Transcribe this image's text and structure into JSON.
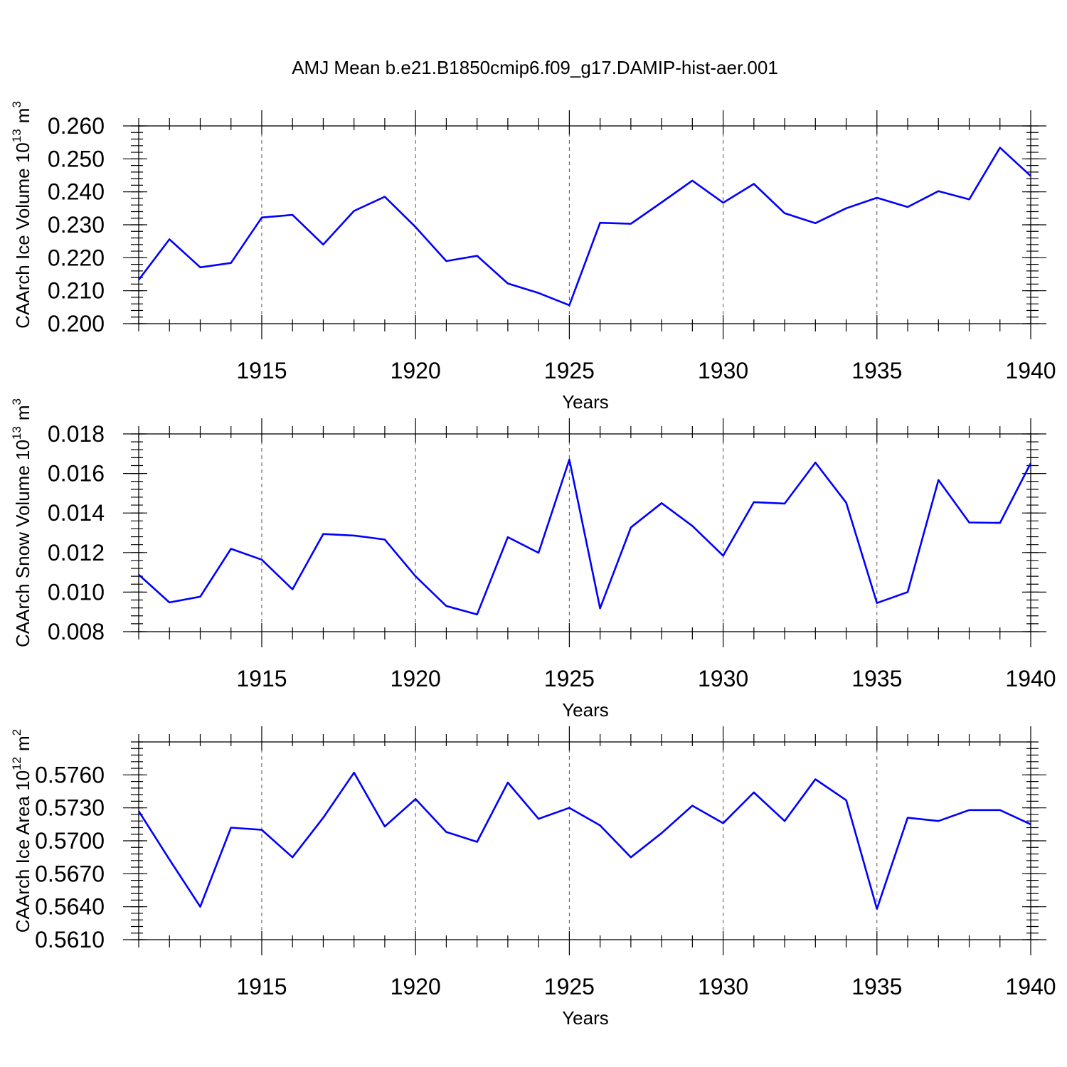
{
  "figure_title": "AMJ Mean b.e21.B1850cmip6.f09_g17.DAMIP-hist-aer.001",
  "chart_data": [
    {
      "type": "line",
      "title": "AMJ Mean b.e21.B1850cmip6.f09_g17.DAMIP-hist-aer.001",
      "ylabel_main": "CAArch Ice Volume 10",
      "ylabel_exp": "13",
      "ylabel_unit": "m",
      "ylabel_unit_exp": "3",
      "xlabel": "Years",
      "xlim": [
        1911,
        1940
      ],
      "ylim": [
        0.2,
        0.26
      ],
      "xticks": [
        1915,
        1920,
        1925,
        1930,
        1935,
        1940
      ],
      "xtick_labels": [
        "1915",
        "1920",
        "1925",
        "1930",
        "1935",
        "1940"
      ],
      "yticks": [
        0.2,
        0.21,
        0.22,
        0.23,
        0.24,
        0.25,
        0.26
      ],
      "ytick_labels": [
        "0.200",
        "0.210",
        "0.220",
        "0.230",
        "0.240",
        "0.250",
        "0.260"
      ],
      "yminor_step": 0.002,
      "x": [
        1911,
        1912,
        1913,
        1914,
        1915,
        1916,
        1917,
        1918,
        1919,
        1920,
        1921,
        1922,
        1923,
        1924,
        1925,
        1926,
        1927,
        1928,
        1929,
        1930,
        1931,
        1932,
        1933,
        1934,
        1935,
        1936,
        1937,
        1938,
        1939,
        1940
      ],
      "values": [
        0.2133,
        0.2256,
        0.2171,
        0.2184,
        0.2322,
        0.233,
        0.224,
        0.2342,
        0.2385,
        0.2293,
        0.219,
        0.2206,
        0.2122,
        0.2093,
        0.2056,
        0.2306,
        0.2303,
        0.2368,
        0.2434,
        0.2367,
        0.2424,
        0.2335,
        0.2305,
        0.235,
        0.2382,
        0.2354,
        0.2402,
        0.2377,
        0.2534,
        0.2448
      ]
    },
    {
      "type": "line",
      "ylabel_main": "CAArch Snow Volume 10",
      "ylabel_exp": "13",
      "ylabel_unit": "m",
      "ylabel_unit_exp": "3",
      "xlabel": "Years",
      "xlim": [
        1911,
        1940
      ],
      "ylim": [
        0.008,
        0.018
      ],
      "xticks": [
        1915,
        1920,
        1925,
        1930,
        1935,
        1940
      ],
      "xtick_labels": [
        "1915",
        "1920",
        "1925",
        "1930",
        "1935",
        "1940"
      ],
      "yticks": [
        0.008,
        0.01,
        0.012,
        0.014,
        0.016,
        0.018
      ],
      "ytick_labels": [
        "0.008",
        "0.010",
        "0.012",
        "0.014",
        "0.016",
        "0.018"
      ],
      "yminor_step": 0.0004,
      "x": [
        1911,
        1912,
        1913,
        1914,
        1915,
        1916,
        1917,
        1918,
        1919,
        1920,
        1921,
        1922,
        1923,
        1924,
        1925,
        1926,
        1927,
        1928,
        1929,
        1930,
        1931,
        1932,
        1933,
        1934,
        1935,
        1936,
        1937,
        1938,
        1939,
        1940
      ],
      "values": [
        0.01088,
        0.00948,
        0.00977,
        0.01219,
        0.01164,
        0.01014,
        0.01294,
        0.01286,
        0.01266,
        0.0108,
        0.0093,
        0.00887,
        0.01278,
        0.01199,
        0.0167,
        0.00918,
        0.01327,
        0.0145,
        0.01335,
        0.01184,
        0.01455,
        0.01448,
        0.01655,
        0.01452,
        0.00945,
        0.01,
        0.01567,
        0.01352,
        0.0135,
        0.01652
      ]
    },
    {
      "type": "line",
      "ylabel_main": "CAArch Ice Area 10",
      "ylabel_exp": "12",
      "ylabel_unit": "m",
      "ylabel_unit_exp": "2",
      "xlabel": "Years",
      "xlim": [
        1911,
        1940
      ],
      "ylim": [
        0.561,
        0.579
      ],
      "xticks": [
        1915,
        1920,
        1925,
        1930,
        1935,
        1940
      ],
      "xtick_labels": [
        "1915",
        "1920",
        "1925",
        "1930",
        "1935",
        "1940"
      ],
      "yticks": [
        0.561,
        0.564,
        0.567,
        0.57,
        0.573,
        0.576
      ],
      "ytick_labels": [
        "0.5610",
        "0.5640",
        "0.5670",
        "0.5700",
        "0.5730",
        "0.5760"
      ],
      "yminor_step": 0.0006,
      "x": [
        1911,
        1912,
        1913,
        1914,
        1915,
        1916,
        1917,
        1918,
        1919,
        1920,
        1921,
        1922,
        1923,
        1924,
        1925,
        1926,
        1927,
        1928,
        1929,
        1930,
        1931,
        1932,
        1933,
        1934,
        1935,
        1936,
        1937,
        1938,
        1939,
        1940
      ],
      "values": [
        0.5727,
        0.5683,
        0.564,
        0.5712,
        0.571,
        0.5685,
        0.5721,
        0.5762,
        0.5713,
        0.5738,
        0.5708,
        0.5699,
        0.5753,
        0.572,
        0.573,
        0.5714,
        0.5685,
        0.5707,
        0.5732,
        0.5716,
        0.5744,
        0.5718,
        0.5756,
        0.5737,
        0.5638,
        0.5721,
        0.5718,
        0.5728,
        0.5728,
        0.5715
      ]
    }
  ]
}
